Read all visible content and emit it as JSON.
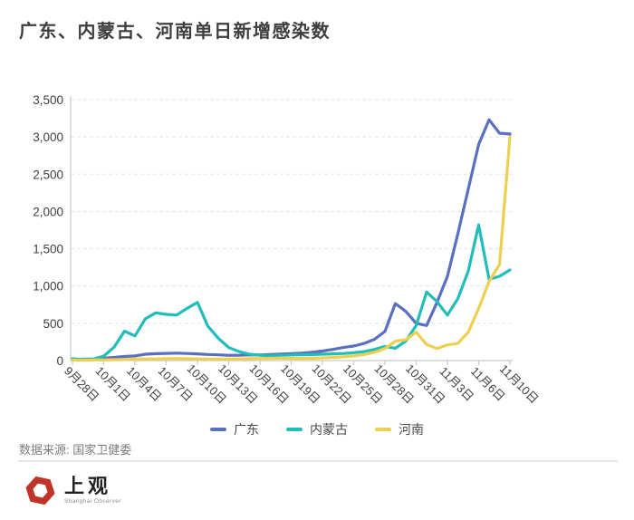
{
  "title": "广东、内蒙古、河南单日新增感染数",
  "source_note": "数据来源: 国家卫健委",
  "logo": {
    "cn": "上观",
    "en": "Shanghai Observer",
    "brand_color": "#bf3329"
  },
  "colors": {
    "axis": "#c9c9c9",
    "grid": "#e2e2e2",
    "tick_label": "#3f3f3f",
    "title": "#3d3d3d"
  },
  "chart_data": {
    "type": "line",
    "x": [
      "9月28日",
      "9月29日",
      "9月30日",
      "10月1日",
      "10月2日",
      "10月3日",
      "10月4日",
      "10月5日",
      "10月6日",
      "10月7日",
      "10月8日",
      "10月9日",
      "10月10日",
      "10月11日",
      "10月12日",
      "10月13日",
      "10月14日",
      "10月15日",
      "10月16日",
      "10月17日",
      "10月18日",
      "10月19日",
      "10月20日",
      "10月21日",
      "10月22日",
      "10月23日",
      "10月24日",
      "10月25日",
      "10月26日",
      "10月27日",
      "10月28日",
      "10月29日",
      "10月30日",
      "10月31日",
      "11月1日",
      "11月2日",
      "11月3日",
      "11月4日",
      "11月5日",
      "11月6日",
      "11月7日",
      "11月8日",
      "11月10日"
    ],
    "x_tick_labels": [
      "9月28日",
      "10月1日",
      "10月4日",
      "10月7日",
      "10月10日",
      "10月13日",
      "10月16日",
      "10月19日",
      "10月22日",
      "10月25日",
      "10月28日",
      "10月31日",
      "11月3日",
      "11月6日",
      "11月10日"
    ],
    "tick_every": 3,
    "ylim": [
      0,
      3500
    ],
    "ytick_step": 500,
    "grid": true,
    "legend_position": "bottom",
    "xlabel": "",
    "ylabel": "",
    "series": [
      {
        "name": "广东",
        "id": "guangdong",
        "color": "#5b6fc0",
        "values": [
          15,
          18,
          22,
          30,
          42,
          55,
          62,
          85,
          92,
          96,
          100,
          95,
          90,
          82,
          76,
          70,
          72,
          78,
          74,
          80,
          86,
          92,
          100,
          110,
          128,
          150,
          175,
          195,
          230,
          285,
          390,
          765,
          660,
          500,
          470,
          780,
          1130,
          1700,
          2300,
          2900,
          3230,
          3050,
          3040
        ]
      },
      {
        "name": "内蒙古",
        "id": "neimenggu",
        "color": "#21bdb9",
        "values": [
          25,
          12,
          20,
          60,
          180,
          395,
          330,
          560,
          640,
          620,
          610,
          700,
          780,
          460,
          300,
          175,
          120,
          85,
          70,
          65,
          70,
          75,
          78,
          80,
          85,
          90,
          95,
          105,
          120,
          150,
          190,
          165,
          260,
          470,
          920,
          790,
          610,
          830,
          1200,
          1820,
          1090,
          1130,
          1215
        ]
      },
      {
        "name": "河南",
        "id": "henan",
        "color": "#edd04f",
        "values": [
          8,
          6,
          8,
          10,
          12,
          15,
          18,
          20,
          22,
          25,
          28,
          26,
          22,
          20,
          18,
          20,
          22,
          25,
          28,
          30,
          32,
          30,
          28,
          30,
          35,
          42,
          50,
          62,
          80,
          110,
          160,
          260,
          280,
          380,
          215,
          160,
          210,
          230,
          380,
          700,
          1060,
          1290,
          3000
        ]
      }
    ]
  }
}
